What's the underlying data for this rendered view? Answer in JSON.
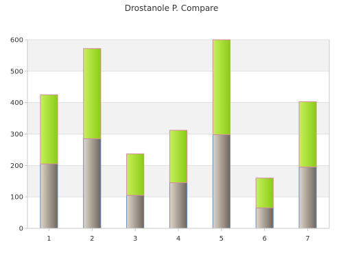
{
  "chart_data": {
    "type": "bar",
    "stacked": true,
    "title": "Drostanole P. Compare",
    "xlabel": "",
    "ylabel": "",
    "categories": [
      "1",
      "2",
      "3",
      "4",
      "5",
      "6",
      "7"
    ],
    "series": [
      {
        "values": [
          205,
          285,
          105,
          145,
          298,
          65,
          195
        ]
      },
      {
        "values": [
          220,
          287,
          132,
          167,
          302,
          95,
          208
        ]
      }
    ],
    "ylim": [
      0,
      600
    ],
    "yticks": [
      "0",
      "100",
      "200",
      "300",
      "400",
      "500",
      "600"
    ],
    "grid": true,
    "banded_background": true,
    "legend": "none"
  },
  "colors": {
    "band": "#f2f2f2",
    "gridline": "#e0e0e0",
    "axis": "#c8c8c8",
    "lower_series_light": "#e0d6c8",
    "lower_series_dark": "#6e665e",
    "upper_series_light": "#c6f05a",
    "upper_series_dark": "#8acc16",
    "lower_border": "#5d8fc4",
    "upper_border": "#d88aa0"
  }
}
